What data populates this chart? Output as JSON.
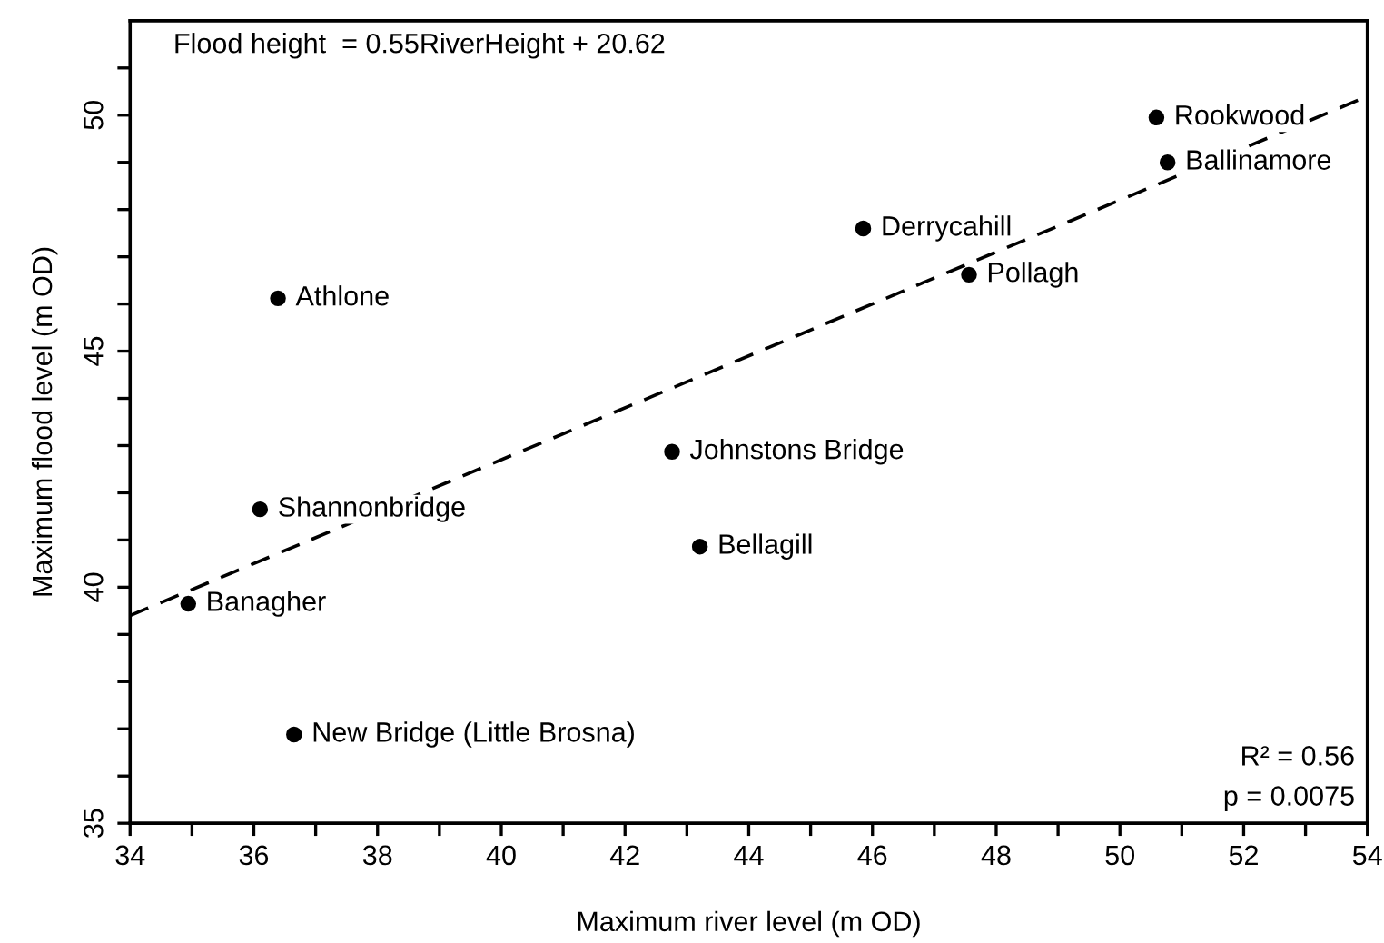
{
  "chart_data": {
    "type": "scatter",
    "xlabel": "Maximum river level (m OD)",
    "ylabel": "Maximum flood level (m OD)",
    "xlim": [
      34,
      54
    ],
    "ylim": [
      35,
      52
    ],
    "xticks": [
      34,
      {
        "value": 35,
        "label": null
      },
      36,
      {
        "value": 37,
        "label": null
      },
      38,
      {
        "value": 39,
        "label": null
      },
      40,
      {
        "value": 41,
        "label": null
      },
      42,
      {
        "value": 43,
        "label": null
      },
      44,
      {
        "value": 45,
        "label": null
      },
      46,
      {
        "value": 47,
        "label": null
      },
      48,
      {
        "value": 49,
        "label": null
      },
      50,
      {
        "value": 51,
        "label": null
      },
      52,
      {
        "value": 53,
        "label": null
      },
      54
    ],
    "yticks": [
      35,
      {
        "value": 36,
        "label": null
      },
      {
        "value": 37,
        "label": null
      },
      {
        "value": 38,
        "label": null
      },
      {
        "value": 39,
        "label": null
      },
      40,
      {
        "value": 41,
        "label": null
      },
      {
        "value": 42,
        "label": null
      },
      {
        "value": 43,
        "label": null
      },
      {
        "value": 44,
        "label": null
      },
      45,
      {
        "value": 46,
        "label": null
      },
      {
        "value": 47,
        "label": null
      },
      {
        "value": 48,
        "label": null
      },
      {
        "value": 49,
        "label": null
      },
      50,
      {
        "value": 51,
        "label": null
      }
    ],
    "grid": false,
    "legend": false,
    "series": [
      {
        "color": "#000000",
        "marker": "circle",
        "x": [
          36.39,
          36.1,
          34.94,
          36.65,
          42.76,
          43.21,
          45.85,
          47.56,
          50.59,
          50.77
        ],
        "values": [
          46.12,
          41.65,
          39.65,
          36.88,
          42.87,
          40.86,
          47.6,
          46.62,
          49.95,
          49.0
        ]
      },
      {
        "type": "line",
        "color": "#000000",
        "marker": "none",
        "line_style": "dashed",
        "x": [
          34,
          54
        ],
        "values": [
          39.4,
          50.4
        ]
      }
    ],
    "annotations": [
      {
        "text": "Athlone",
        "x": 36.39,
        "y": 46.12
      },
      {
        "text": "Shannonbridge",
        "x": 36.1,
        "y": 41.65
      },
      {
        "text": "Banagher",
        "x": 34.94,
        "y": 39.65
      },
      {
        "text": "New Bridge (Little Brosna)",
        "x": 36.65,
        "y": 36.88
      },
      {
        "text": "Johnstons Bridge",
        "x": 42.76,
        "y": 42.87
      },
      {
        "text": "Bellagill",
        "x": 43.21,
        "y": 40.86
      },
      {
        "text": "Derrycahill",
        "x": 45.85,
        "y": 47.6
      },
      {
        "text": "Pollagh",
        "x": 47.56,
        "y": 46.62
      },
      {
        "text": "Rookwood",
        "x": 50.59,
        "y": 49.95
      },
      {
        "text": "Ballinamore",
        "x": 50.77,
        "y": 49.0
      },
      "Flood height  = 0.55RiverHeight + 20.62",
      "R² = 0.56",
      "p = 0.0075"
    ]
  }
}
